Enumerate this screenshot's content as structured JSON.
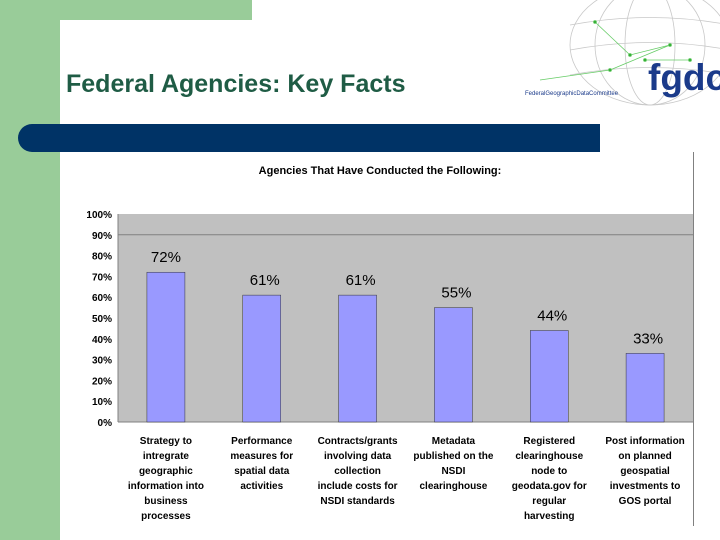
{
  "slide": {
    "title": "Federal Agencies: Key Facts"
  },
  "logo": {
    "letters": "fgdc",
    "full_name": "FederalGeographicDataCommittee"
  },
  "colors": {
    "accent_green": "#99cc99",
    "navy": "#003366",
    "bar_fill": "#9999ff",
    "plot_bg": "#c0c0c0"
  },
  "chart_data": {
    "type": "bar",
    "title": "Agencies That Have Conducted the Following:",
    "categories": [
      [
        "Strategy to",
        "intregrate",
        "geographic",
        "information into",
        "business",
        "processes"
      ],
      [
        "Performance",
        "measures for",
        "spatial data",
        "activities"
      ],
      [
        "Contracts/grants",
        "involving data",
        "collection",
        "include costs for",
        "NSDI standards"
      ],
      [
        "Metadata",
        "published on the",
        "NSDI",
        "clearinghouse"
      ],
      [
        "Registered",
        "clearinghouse",
        "node to",
        "geodata.gov for",
        "regular",
        "harvesting"
      ],
      [
        "Post information",
        "on planned",
        "geospatial",
        "investments to",
        "GOS portal"
      ]
    ],
    "values": [
      72,
      61,
      61,
      55,
      44,
      33
    ],
    "data_labels": [
      "72%",
      "61%",
      "61%",
      "55%",
      "44%",
      "33%"
    ],
    "y_ticks": [
      "0%",
      "10%",
      "20%",
      "30%",
      "40%",
      "50%",
      "60%",
      "70%",
      "80%",
      "90%",
      "100%"
    ],
    "ylim": [
      0,
      100
    ],
    "xlabel": "",
    "ylabel": "",
    "grid": "major at 90% only",
    "legend": "none"
  }
}
